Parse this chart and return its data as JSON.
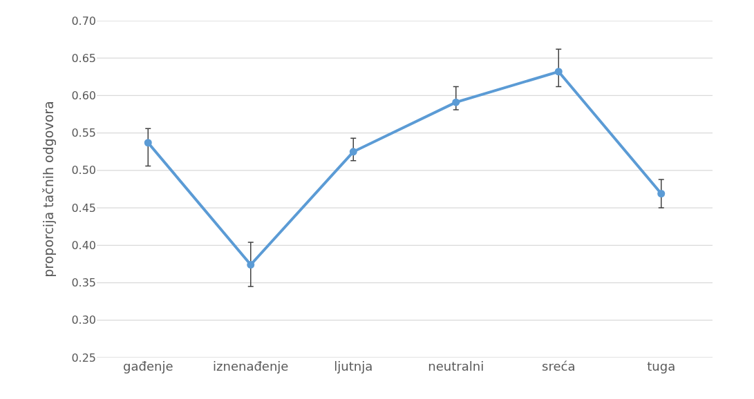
{
  "chart_data": {
    "type": "line",
    "ylabel": "proporcija tačnih odgovora",
    "categories": [
      "gađenje",
      "iznenađenje",
      "ljutnja",
      "neutralni",
      "sreća",
      "tuga"
    ],
    "series": [
      {
        "color": "#5b9bd5",
        "values": [
          0.537,
          0.374,
          0.525,
          0.591,
          0.632,
          0.469
        ],
        "errors": [
          [
            0.506,
            0.556
          ],
          [
            0.345,
            0.404
          ],
          [
            0.513,
            0.543
          ],
          [
            0.581,
            0.612
          ],
          [
            0.612,
            0.662
          ],
          [
            0.45,
            0.488
          ]
        ]
      }
    ],
    "ylim": [
      0.25,
      0.7
    ],
    "yticks": [
      {
        "value": 0.25,
        "label": "0.25"
      },
      {
        "value": 0.3,
        "label": "0.30"
      },
      {
        "value": 0.35,
        "label": "0.35"
      },
      {
        "value": 0.4,
        "label": "0.40"
      },
      {
        "value": 0.45,
        "label": "0.45"
      },
      {
        "value": 0.5,
        "label": "0.50"
      },
      {
        "value": 0.55,
        "label": "0.55"
      },
      {
        "value": 0.6,
        "label": "0.60"
      },
      {
        "value": 0.65,
        "label": "0.65"
      },
      {
        "value": 0.7,
        "label": "0.70"
      }
    ],
    "grid": "y",
    "marker": "circle",
    "line_style": "solid"
  }
}
